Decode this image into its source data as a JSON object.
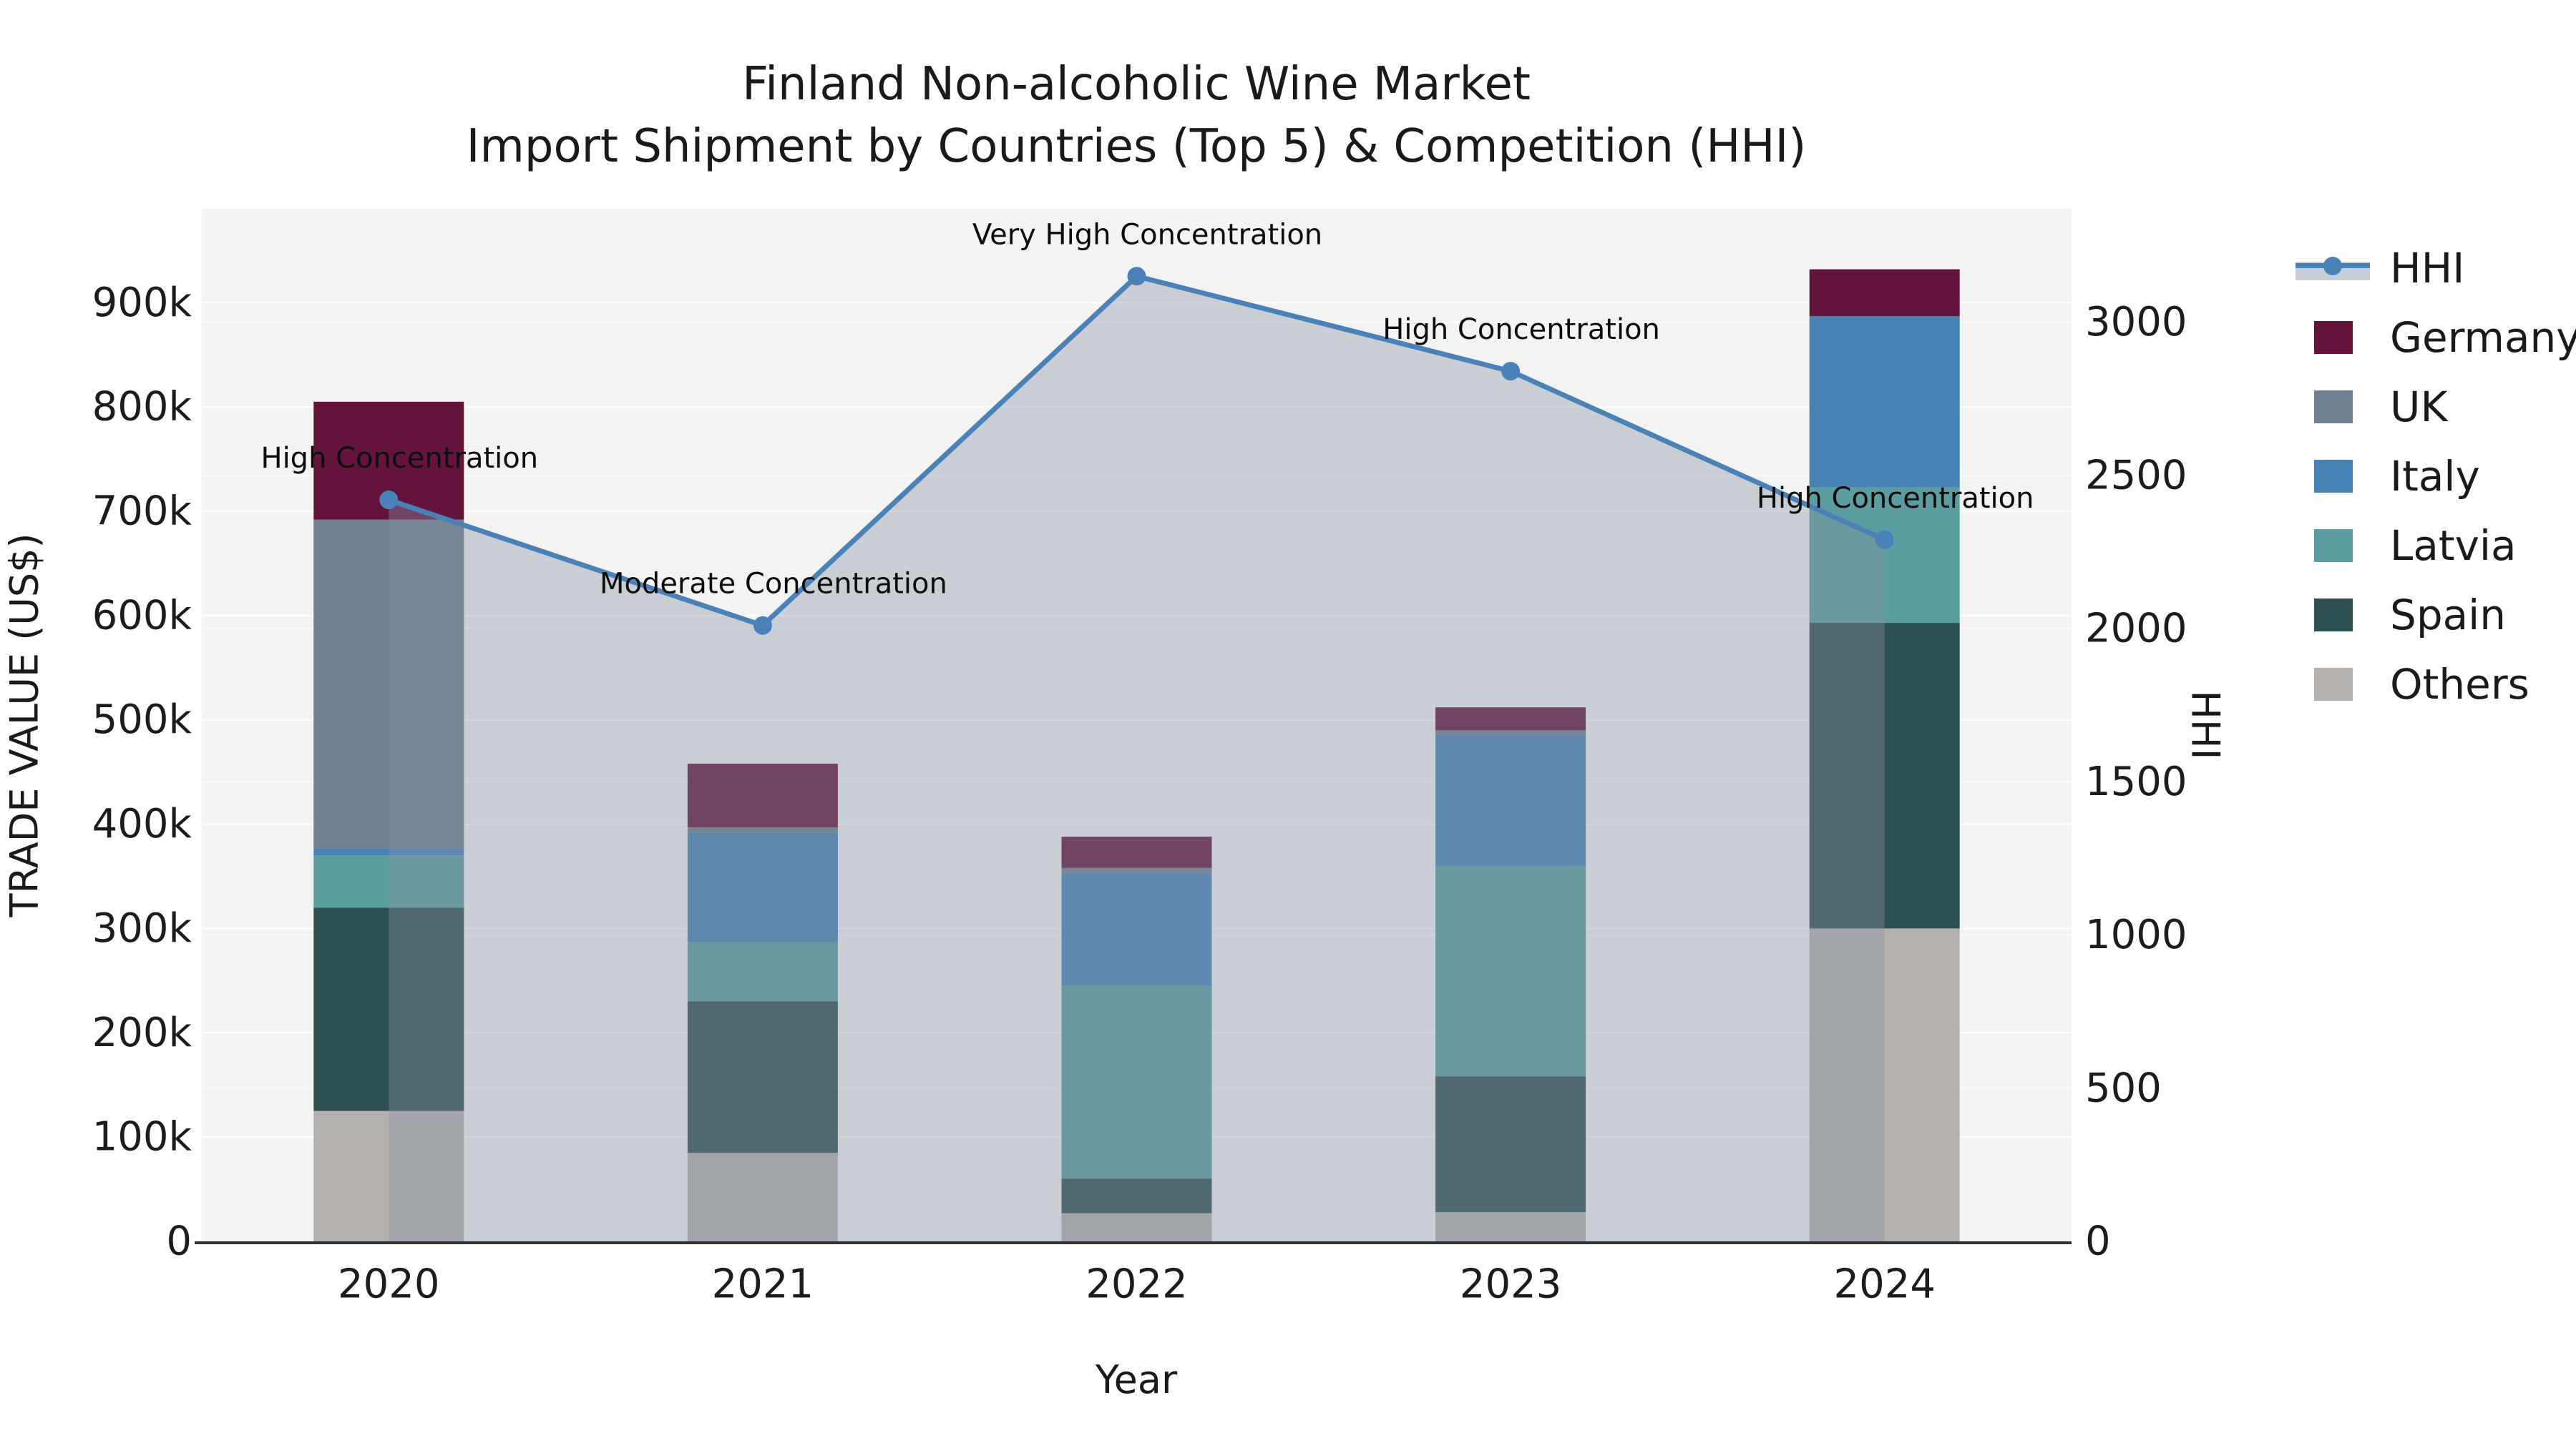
{
  "chart_data": {
    "type": "bar+line",
    "title_line1": "Finland Non-alcoholic Wine Market",
    "title_line2": "Import Shipment by Countries (Top 5) & Competition (HHI)",
    "xlabel": "Year",
    "left_axis": {
      "label": "TRADE VALUE (US$)",
      "tick_labels": [
        "0",
        "100k",
        "200k",
        "300k",
        "400k",
        "500k",
        "600k",
        "700k",
        "800k",
        "900k"
      ],
      "tick_values_k": [
        0,
        100,
        200,
        300,
        400,
        500,
        600,
        700,
        800,
        900
      ],
      "max_k": 990,
      "grid": true
    },
    "right_axis": {
      "label": "HHI",
      "tick_labels": [
        "0",
        "500",
        "1000",
        "1500",
        "2000",
        "2500",
        "3000"
      ],
      "tick_values": [
        0,
        500,
        1000,
        1500,
        2000,
        2500,
        3000
      ],
      "max": 3370,
      "grid": true
    },
    "categories": [
      "2020",
      "2021",
      "2022",
      "2023",
      "2024"
    ],
    "bar_stack_bottom_to_top": [
      "Others",
      "Spain",
      "Latvia",
      "Italy",
      "UK",
      "Germany"
    ],
    "series": [
      {
        "name": "Others",
        "color": "#b3b0ad",
        "values_k": [
          125,
          85,
          27,
          28,
          300
        ]
      },
      {
        "name": "Spain",
        "color": "#2e4f50",
        "values_k": [
          195,
          145,
          33,
          130,
          293
        ]
      },
      {
        "name": "Latvia",
        "color": "#5b9da0",
        "values_k": [
          50,
          57,
          185,
          202,
          130
        ]
      },
      {
        "name": "Italy",
        "color": "#4682b4",
        "values_k": [
          7,
          105,
          108,
          125,
          164
        ]
      },
      {
        "name": "UK",
        "color": "#6f8090",
        "values_k": [
          315,
          5,
          5,
          5,
          0
        ]
      },
      {
        "name": "Germany",
        "color": "#64143a",
        "values_k": [
          113,
          61,
          30,
          22,
          45
        ]
      }
    ],
    "bar_totals_k": [
      805,
      458,
      388,
      512,
      932
    ],
    "line_series": {
      "name": "HHI",
      "color": "#4a82b8",
      "values": [
        2420,
        2010,
        3150,
        2840,
        2290
      ],
      "area_fill": "rgba(134,146,166,0.38)",
      "legend_band": "rgba(134,146,166,0.45)"
    },
    "annotations": [
      {
        "year": "2020",
        "text": "High Concentration"
      },
      {
        "year": "2021",
        "text": "Moderate Concentration"
      },
      {
        "year": "2022",
        "text": "Very High Concentration"
      },
      {
        "year": "2023",
        "text": "High Concentration"
      },
      {
        "year": "2024",
        "text": "High Concentration"
      }
    ],
    "legend_order": [
      "HHI",
      "Germany",
      "UK",
      "Italy",
      "Latvia",
      "Spain",
      "Others"
    ],
    "plot_background": "#f3f3f3",
    "grid_color": "#ffffff",
    "axis_line_color": "#333333",
    "tick_text_color": "#1c1c1c",
    "annotation_text_color": "#0d0d0d"
  }
}
